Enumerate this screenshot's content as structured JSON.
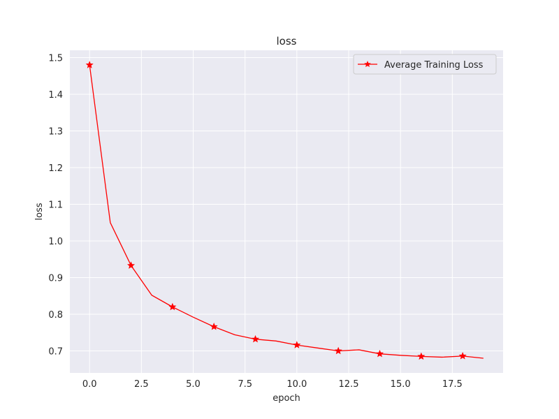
{
  "chart_data": {
    "type": "line",
    "title": "loss",
    "xlabel": "epoch",
    "ylabel": "loss",
    "xlim": [
      -0.95,
      19.95
    ],
    "ylim": [
      0.64,
      1.52
    ],
    "xticks": [
      "0.0",
      "2.5",
      "5.0",
      "7.5",
      "10.0",
      "12.5",
      "15.0",
      "17.5"
    ],
    "xtick_values": [
      0,
      2.5,
      5,
      7.5,
      10,
      12.5,
      15,
      17.5
    ],
    "yticks": [
      "0.7",
      "0.8",
      "0.9",
      "1.0",
      "1.1",
      "1.2",
      "1.3",
      "1.4",
      "1.5"
    ],
    "ytick_values": [
      0.7,
      0.8,
      0.9,
      1.0,
      1.1,
      1.2,
      1.3,
      1.4,
      1.5
    ],
    "grid": true,
    "legend_position": "top-right",
    "colors": {
      "background": "#eaeaf2",
      "grid": "#ffffff",
      "line": "#ff0000"
    },
    "series": [
      {
        "name": "Average Training Loss",
        "marker": "star",
        "marker_every": 2,
        "x": [
          0,
          1,
          2,
          3,
          4,
          5,
          6,
          7,
          8,
          9,
          10,
          11,
          12,
          13,
          14,
          15,
          16,
          17,
          18,
          19
        ],
        "y": [
          1.48,
          1.05,
          0.933,
          0.852,
          0.82,
          0.792,
          0.766,
          0.744,
          0.732,
          0.727,
          0.716,
          0.708,
          0.7,
          0.703,
          0.692,
          0.688,
          0.685,
          0.683,
          0.686,
          0.68
        ]
      }
    ]
  }
}
